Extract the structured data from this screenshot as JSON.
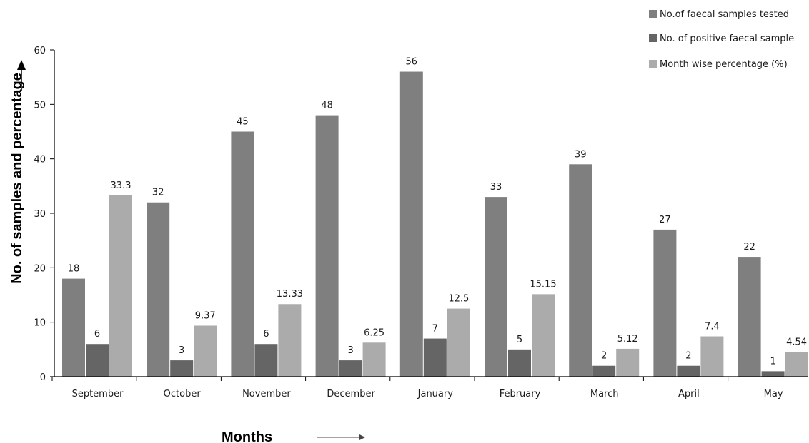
{
  "chart_data": {
    "type": "bar",
    "categories": [
      "September",
      "October",
      "November",
      "December",
      "January",
      "February",
      "March",
      "April",
      "May"
    ],
    "series": [
      {
        "name": "No.of faecal samples tested",
        "color": "#7f7f7f",
        "values": [
          18,
          32,
          45,
          48,
          56,
          33,
          39,
          27,
          22
        ],
        "labels": [
          "18",
          "32",
          "45",
          "48",
          "56",
          "33",
          "39",
          "27",
          "22"
        ]
      },
      {
        "name": "No. of positive faecal sample",
        "color": "#656565",
        "values": [
          6,
          3,
          6,
          3,
          7,
          5,
          2,
          2,
          1
        ],
        "labels": [
          "6",
          "3",
          "6",
          "3",
          "7",
          "5",
          "2",
          "2",
          "1"
        ]
      },
      {
        "name": "Month wise percentage (%)",
        "color": "#ababab",
        "values": [
          33.3,
          9.37,
          13.33,
          6.25,
          12.5,
          15.15,
          5.12,
          7.4,
          4.54
        ],
        "labels": [
          "33.3",
          "9.37",
          "13.33",
          "6.25",
          "12.5",
          "15.15",
          "5.12",
          "7.4",
          "4.54"
        ]
      }
    ],
    "title": "",
    "xlabel": "Months",
    "ylabel": "No. of samples and percentage",
    "ylim": [
      0,
      60
    ],
    "yticks": [
      0,
      10,
      20,
      30,
      40,
      50,
      60
    ],
    "grid": false,
    "legend": "top-right"
  }
}
